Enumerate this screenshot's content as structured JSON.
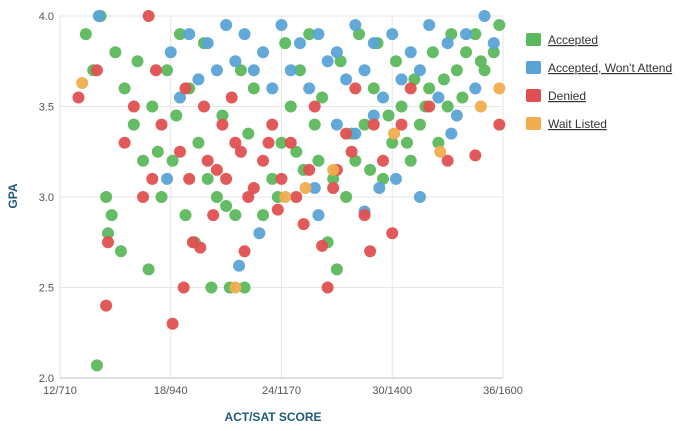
{
  "chart_data": {
    "type": "scatter",
    "xlabel": "ACT/SAT SCORE",
    "ylabel": "GPA",
    "x_tick_labels": [
      "12/710",
      "18/940",
      "24/1170",
      "30/1400",
      "36/1600"
    ],
    "x_ticks": [
      12,
      18,
      24,
      30,
      36
    ],
    "y_tick_labels": [
      "2.0",
      "2.5",
      "3.0",
      "3.5",
      "4.0"
    ],
    "y_ticks": [
      2.0,
      2.5,
      3.0,
      3.5,
      4.0
    ],
    "xlim": [
      12,
      36
    ],
    "ylim": [
      2.0,
      4.0
    ],
    "grid": true,
    "legend_position": "right",
    "series": [
      {
        "name": "Accepted",
        "color": "#5cb85c",
        "points": [
          [
            13.4,
            3.9
          ],
          [
            14.2,
            4.0
          ],
          [
            15,
            3.8
          ],
          [
            15.5,
            3.6
          ],
          [
            16,
            3.4
          ],
          [
            16.5,
            3.2
          ],
          [
            13.8,
            3.7
          ],
          [
            14.5,
            3.0
          ],
          [
            14.8,
            2.9
          ],
          [
            14.6,
            2.8
          ],
          [
            15.3,
            2.7
          ],
          [
            16.8,
            2.6
          ],
          [
            17.5,
            3.0
          ],
          [
            18.1,
            3.2
          ],
          [
            17,
            3.5
          ],
          [
            17.8,
            3.7
          ],
          [
            18.5,
            3.9
          ],
          [
            19,
            3.6
          ],
          [
            19.5,
            3.3
          ],
          [
            20,
            3.1
          ],
          [
            20.5,
            3.0
          ],
          [
            21,
            2.95
          ],
          [
            21.5,
            2.9
          ],
          [
            20.2,
            2.5
          ],
          [
            21.2,
            2.5
          ],
          [
            22,
            2.5
          ],
          [
            23,
            2.9
          ],
          [
            23.5,
            3.1
          ],
          [
            24,
            3.3
          ],
          [
            24.5,
            3.5
          ],
          [
            25,
            3.7
          ],
          [
            25.5,
            3.9
          ],
          [
            26,
            3.2
          ],
          [
            26.5,
            2.75
          ],
          [
            27,
            2.6
          ],
          [
            27.5,
            3.0
          ],
          [
            28,
            3.2
          ],
          [
            28.5,
            3.4
          ],
          [
            29,
            3.6
          ],
          [
            29.5,
            3.1
          ],
          [
            30,
            3.3
          ],
          [
            30.5,
            3.5
          ],
          [
            31,
            3.2
          ],
          [
            31.5,
            3.4
          ],
          [
            32,
            3.6
          ],
          [
            32.5,
            3.3
          ],
          [
            33,
            3.5
          ],
          [
            33.5,
            3.7
          ],
          [
            34,
            3.8
          ],
          [
            34.5,
            3.9
          ],
          [
            35,
            3.7
          ],
          [
            35.5,
            3.8
          ],
          [
            35.8,
            3.95
          ],
          [
            14,
            2.07
          ],
          [
            18.8,
            2.9
          ],
          [
            19.3,
            2.75
          ],
          [
            20.8,
            3.45
          ],
          [
            22.5,
            3.6
          ],
          [
            23.8,
            3.0
          ],
          [
            24.8,
            3.25
          ],
          [
            25.8,
            3.4
          ],
          [
            26.8,
            3.1
          ],
          [
            27.8,
            3.35
          ],
          [
            28.8,
            3.15
          ],
          [
            29.8,
            3.45
          ],
          [
            30.8,
            3.3
          ],
          [
            31.8,
            3.5
          ],
          [
            32.8,
            3.65
          ],
          [
            33.8,
            3.55
          ],
          [
            34.8,
            3.75
          ],
          [
            22.2,
            3.35
          ],
          [
            21.8,
            3.7
          ],
          [
            19.8,
            3.85
          ],
          [
            18.3,
            3.45
          ],
          [
            17.3,
            3.25
          ],
          [
            16.2,
            3.75
          ],
          [
            24.2,
            3.85
          ],
          [
            25.2,
            3.15
          ],
          [
            26.2,
            3.55
          ],
          [
            27.2,
            3.75
          ],
          [
            28.2,
            3.9
          ],
          [
            29.2,
            3.85
          ],
          [
            30.2,
            3.75
          ],
          [
            31.2,
            3.65
          ],
          [
            32.2,
            3.8
          ],
          [
            33.2,
            3.9
          ]
        ]
      },
      {
        "name": "Accepted, Won't Attend",
        "color": "#5aa3d6",
        "points": [
          [
            14.1,
            4.0
          ],
          [
            18,
            3.8
          ],
          [
            19,
            3.9
          ],
          [
            20,
            3.85
          ],
          [
            21,
            3.95
          ],
          [
            22,
            3.9
          ],
          [
            23,
            3.8
          ],
          [
            24,
            3.95
          ],
          [
            25,
            3.85
          ],
          [
            26,
            3.9
          ],
          [
            27,
            3.8
          ],
          [
            28,
            3.95
          ],
          [
            29,
            3.85
          ],
          [
            30,
            3.9
          ],
          [
            31,
            3.8
          ],
          [
            32,
            3.95
          ],
          [
            33,
            3.85
          ],
          [
            34,
            3.9
          ],
          [
            35,
            4.0
          ],
          [
            35.5,
            3.85
          ],
          [
            24.5,
            3.7
          ],
          [
            25.5,
            3.6
          ],
          [
            26.5,
            3.75
          ],
          [
            27.5,
            3.65
          ],
          [
            28.5,
            3.7
          ],
          [
            29.5,
            3.55
          ],
          [
            30.5,
            3.65
          ],
          [
            31.5,
            3.7
          ],
          [
            32.5,
            3.55
          ],
          [
            33.5,
            3.45
          ],
          [
            34.5,
            3.6
          ],
          [
            22.5,
            3.7
          ],
          [
            23.5,
            3.6
          ],
          [
            21.5,
            3.75
          ],
          [
            20.5,
            3.7
          ],
          [
            19.5,
            3.65
          ],
          [
            18.5,
            3.55
          ],
          [
            27,
            3.4
          ],
          [
            28,
            3.35
          ],
          [
            29,
            3.45
          ],
          [
            30.2,
            3.1
          ],
          [
            31.5,
            3.0
          ],
          [
            26,
            2.9
          ],
          [
            22.8,
            2.8
          ],
          [
            21.7,
            2.62
          ],
          [
            29.3,
            3.05
          ],
          [
            28.5,
            2.92
          ],
          [
            33.2,
            3.35
          ],
          [
            17.8,
            3.1
          ],
          [
            25.8,
            3.05
          ]
        ]
      },
      {
        "name": "Denied",
        "color": "#e05050",
        "points": [
          [
            13,
            3.55
          ],
          [
            14,
            3.7
          ],
          [
            14.6,
            2.75
          ],
          [
            14.5,
            2.4
          ],
          [
            15.5,
            3.3
          ],
          [
            16,
            3.5
          ],
          [
            16.5,
            3.0
          ],
          [
            17,
            3.1
          ],
          [
            17.5,
            3.4
          ],
          [
            18.1,
            2.3
          ],
          [
            18.8,
            3.6
          ],
          [
            19,
            3.1
          ],
          [
            19.2,
            2.75
          ],
          [
            19.8,
            3.5
          ],
          [
            20,
            3.2
          ],
          [
            20.5,
            3.15
          ],
          [
            21,
            3.1
          ],
          [
            21.5,
            3.3
          ],
          [
            22,
            2.7
          ],
          [
            22.5,
            3.05
          ],
          [
            23,
            3.2
          ],
          [
            23.5,
            3.4
          ],
          [
            24,
            3.1
          ],
          [
            24.5,
            3.3
          ],
          [
            25.2,
            2.85
          ],
          [
            25.8,
            3.5
          ],
          [
            26.2,
            2.73
          ],
          [
            26.5,
            2.5
          ],
          [
            27,
            3.15
          ],
          [
            27.5,
            3.35
          ],
          [
            28,
            3.6
          ],
          [
            28.5,
            2.9
          ],
          [
            28.8,
            2.7
          ],
          [
            29.5,
            3.2
          ],
          [
            30,
            2.8
          ],
          [
            30.5,
            3.4
          ],
          [
            31,
            3.6
          ],
          [
            32,
            3.5
          ],
          [
            33,
            3.2
          ],
          [
            34.5,
            3.23
          ],
          [
            35.8,
            3.4
          ],
          [
            18.7,
            2.5
          ],
          [
            19.6,
            2.72
          ],
          [
            22.2,
            3.0
          ],
          [
            23.8,
            2.93
          ],
          [
            20.8,
            3.4
          ],
          [
            21.3,
            3.55
          ],
          [
            24.8,
            3.0
          ],
          [
            26.8,
            3.05
          ],
          [
            17.2,
            3.7
          ],
          [
            16.8,
            4.0
          ],
          [
            18.5,
            3.25
          ],
          [
            20.3,
            2.9
          ],
          [
            21.8,
            3.25
          ],
          [
            23.3,
            3.3
          ],
          [
            25.5,
            3.15
          ],
          [
            27.8,
            3.25
          ],
          [
            29,
            3.4
          ]
        ]
      },
      {
        "name": "Wait Listed",
        "color": "#f0ad4e",
        "points": [
          [
            13.2,
            3.63
          ],
          [
            21.5,
            2.5
          ],
          [
            24.2,
            3.0
          ],
          [
            25.3,
            3.05
          ],
          [
            30.1,
            3.35
          ],
          [
            34.8,
            3.5
          ],
          [
            35.8,
            3.6
          ],
          [
            26.8,
            3.15
          ],
          [
            32.6,
            3.25
          ]
        ]
      }
    ]
  }
}
